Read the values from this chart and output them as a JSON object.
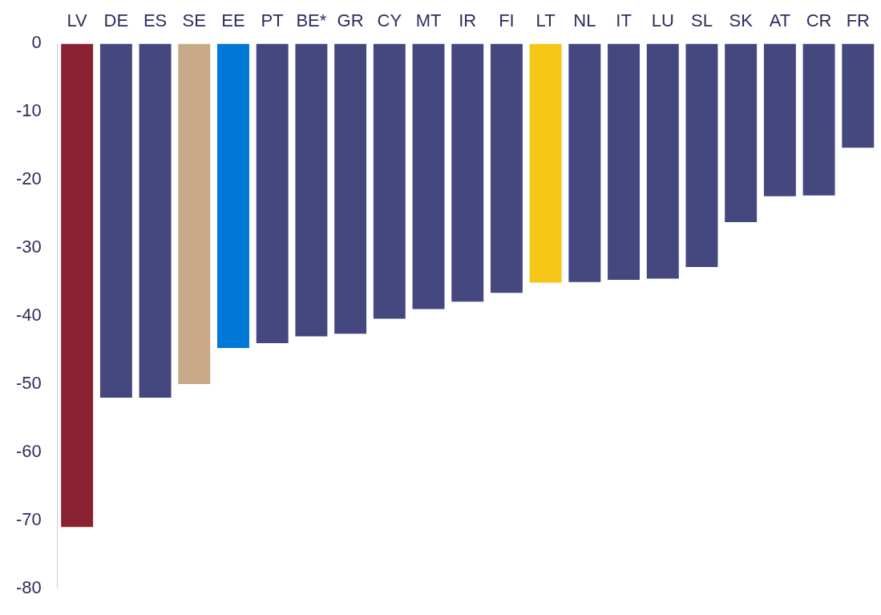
{
  "chart_data": {
    "type": "bar",
    "categories": [
      "LV",
      "DE",
      "ES",
      "SE",
      "EE",
      "PT",
      "BE*",
      "GR",
      "CY",
      "MT",
      "IR",
      "FI",
      "LT",
      "NL",
      "IT",
      "LU",
      "SL",
      "SK",
      "AT",
      "CR",
      "FR"
    ],
    "values": [
      -71,
      -52,
      -52,
      -50,
      -44.7,
      -44,
      -43,
      -42.6,
      -40.4,
      -39,
      -37.9,
      -36.6,
      -35.1,
      -35,
      -34.7,
      -34.5,
      -32.8,
      -26.2,
      -22.4,
      -22.3,
      -15.3
    ],
    "colors": [
      "#8b2233",
      "#45477f",
      "#45477f",
      "#c8aa88",
      "#0078d7",
      "#45477f",
      "#45477f",
      "#45477f",
      "#45477f",
      "#45477f",
      "#45477f",
      "#45477f",
      "#f5c518",
      "#45477f",
      "#45477f",
      "#45477f",
      "#45477f",
      "#45477f",
      "#45477f",
      "#45477f",
      "#45477f"
    ],
    "ylim": [
      -80,
      0
    ],
    "yticks": [
      0,
      -10,
      -20,
      -30,
      -40,
      -50,
      -60,
      -70,
      -80
    ],
    "grid": false,
    "legend": false
  }
}
